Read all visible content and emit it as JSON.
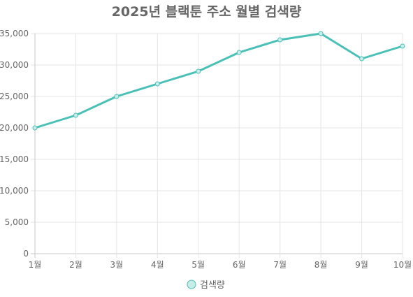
{
  "chart_data": {
    "type": "line",
    "title": "2025년 블랙툰 주소 월별 검색량",
    "categories": [
      "1월",
      "2월",
      "3월",
      "4월",
      "5월",
      "6월",
      "7월",
      "8월",
      "9월",
      "10월"
    ],
    "series": [
      {
        "name": "검색량",
        "values": [
          20000,
          22000,
          25000,
          27000,
          29000,
          32000,
          34000,
          35000,
          31000,
          33000
        ]
      }
    ],
    "ylim": [
      0,
      35000
    ],
    "yticks": [
      0,
      5000,
      10000,
      15000,
      20000,
      25000,
      30000,
      35000
    ],
    "ytick_labels": [
      "0",
      "5,000",
      "10,000",
      "15,000",
      "20,000",
      "25,000",
      "30,000",
      "35,000"
    ],
    "grid": true,
    "legend_position": "bottom",
    "colors": {
      "line": "#4bc0b7",
      "point_fill": "#c8ede9",
      "grid": "#e5e5e5",
      "text": "#666666"
    }
  }
}
